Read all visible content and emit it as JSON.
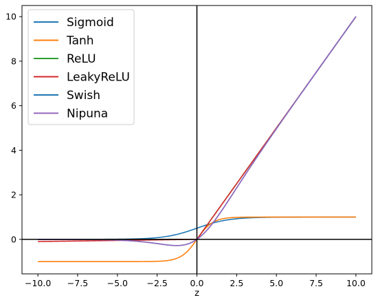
{
  "chart_data": {
    "type": "line",
    "title": "",
    "xlabel": "z",
    "ylabel": "",
    "xlim": [
      -11.0,
      11.0
    ],
    "ylim": [
      -1.55,
      10.5
    ],
    "x_ticks": [
      "−10.0",
      "−7.5",
      "−5.0",
      "−2.5",
      "0.0",
      "2.5",
      "5.0",
      "7.5",
      "10.0"
    ],
    "y_ticks": [
      "0",
      "2",
      "4",
      "6",
      "8",
      "10"
    ],
    "x_tick_values": [
      -10,
      -7.5,
      -5,
      -2.5,
      0,
      2.5,
      5,
      7.5,
      10
    ],
    "y_tick_values": [
      0,
      2,
      4,
      6,
      8,
      10
    ],
    "x_domain": [
      -10,
      10
    ],
    "reference_lines": {
      "x": 0,
      "y": 0
    },
    "grid": false,
    "legend_position": "upper-left",
    "series": [
      {
        "name": "Sigmoid",
        "color": "#1f77b4",
        "function": "sigmoid"
      },
      {
        "name": "Tanh",
        "color": "#ff7f0e",
        "function": "tanh"
      },
      {
        "name": "ReLU",
        "color": "#2ca02c",
        "function": "relu"
      },
      {
        "name": "LeakyReLU",
        "color": "#d62728",
        "function": "leaky_relu",
        "negative_slope": 0.01
      },
      {
        "name": "Swish",
        "color": "#1f77b4",
        "function": "swish"
      },
      {
        "name": "Nipuna",
        "color": "#9467bd",
        "function": "nipuna"
      }
    ]
  }
}
